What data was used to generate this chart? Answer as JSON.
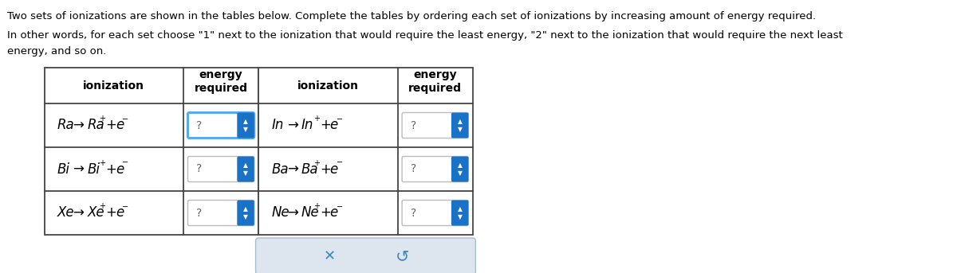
{
  "title_line1": "Two sets of ionizations are shown in the tables below. Complete the tables by ordering each set of ionizations by increasing amount of energy required.",
  "title_line2": "In other words, for each set choose \"1\" next to the ionization that would require the least energy, \"2\" next to the ionization that would require the next least",
  "title_line3": "energy, and so on.",
  "bg_color": "#ffffff",
  "table1_rows": [
    "Ra",
    "Bi",
    "Xe"
  ],
  "table2_rows": [
    "In",
    "Ba",
    "Ne"
  ],
  "spinner_blue": "#1a72c7",
  "spinner_border_active": "#5aaaee",
  "text_color": "#000000",
  "bottom_btn_bg": "#dde6ee",
  "bottom_btn_border": "#aabbcc"
}
